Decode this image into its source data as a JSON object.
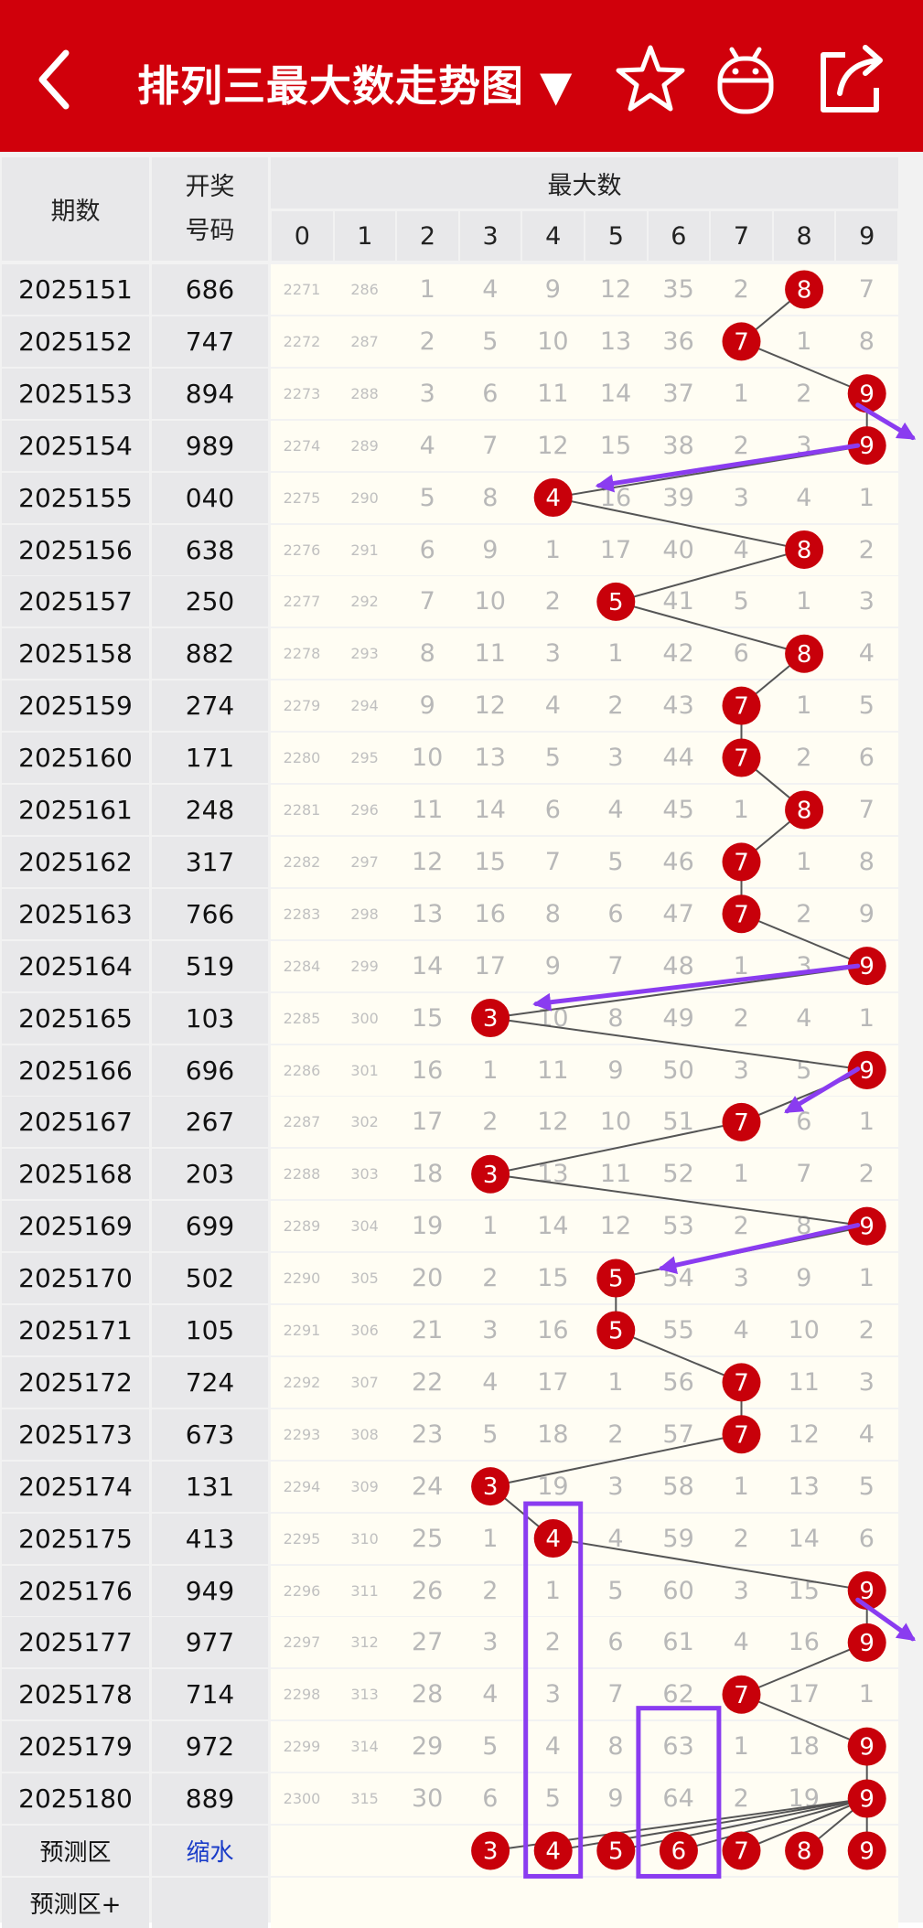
{
  "header": {
    "title": "排列三最大数走势图 ▼",
    "back_icon": "back-arrow-icon",
    "star_icon": "star-icon",
    "robot_icon": "robot-icon",
    "share_icon": "share-icon",
    "color": "#d0000b"
  },
  "table": {
    "col_period": "期数",
    "col_number_line1": "开奖",
    "col_number_line2": "号码",
    "group_header": "最大数",
    "digits": [
      "0",
      "1",
      "2",
      "3",
      "4",
      "5",
      "6",
      "7",
      "8",
      "9"
    ],
    "rows": [
      {
        "period": "2025151",
        "number": "686",
        "max": 8,
        "c": [
          "2271",
          "286",
          "1",
          "4",
          "9",
          "12",
          "35",
          "2",
          "8",
          "7"
        ]
      },
      {
        "period": "2025152",
        "number": "747",
        "max": 7,
        "c": [
          "2272",
          "287",
          "2",
          "5",
          "10",
          "13",
          "36",
          "7",
          "1",
          "8"
        ]
      },
      {
        "period": "2025153",
        "number": "894",
        "max": 9,
        "c": [
          "2273",
          "288",
          "3",
          "6",
          "11",
          "14",
          "37",
          "1",
          "2",
          "9"
        ]
      },
      {
        "period": "2025154",
        "number": "989",
        "max": 9,
        "c": [
          "2274",
          "289",
          "4",
          "7",
          "12",
          "15",
          "38",
          "2",
          "3",
          "9"
        ]
      },
      {
        "period": "2025155",
        "number": "040",
        "max": 4,
        "c": [
          "2275",
          "290",
          "5",
          "8",
          "4",
          "16",
          "39",
          "3",
          "4",
          "1"
        ]
      },
      {
        "period": "2025156",
        "number": "638",
        "max": 8,
        "c": [
          "2276",
          "291",
          "6",
          "9",
          "1",
          "17",
          "40",
          "4",
          "8",
          "2"
        ]
      },
      {
        "period": "2025157",
        "number": "250",
        "max": 5,
        "c": [
          "2277",
          "292",
          "7",
          "10",
          "2",
          "5",
          "41",
          "5",
          "1",
          "3"
        ]
      },
      {
        "period": "2025158",
        "number": "882",
        "max": 8,
        "c": [
          "2278",
          "293",
          "8",
          "11",
          "3",
          "1",
          "42",
          "6",
          "8",
          "4"
        ]
      },
      {
        "period": "2025159",
        "number": "274",
        "max": 7,
        "c": [
          "2279",
          "294",
          "9",
          "12",
          "4",
          "2",
          "43",
          "7",
          "1",
          "5"
        ]
      },
      {
        "period": "2025160",
        "number": "171",
        "max": 7,
        "c": [
          "2280",
          "295",
          "10",
          "13",
          "5",
          "3",
          "44",
          "7",
          "2",
          "6"
        ]
      },
      {
        "period": "2025161",
        "number": "248",
        "max": 8,
        "c": [
          "2281",
          "296",
          "11",
          "14",
          "6",
          "4",
          "45",
          "1",
          "8",
          "7"
        ]
      },
      {
        "period": "2025162",
        "number": "317",
        "max": 7,
        "c": [
          "2282",
          "297",
          "12",
          "15",
          "7",
          "5",
          "46",
          "7",
          "1",
          "8"
        ]
      },
      {
        "period": "2025163",
        "number": "766",
        "max": 7,
        "c": [
          "2283",
          "298",
          "13",
          "16",
          "8",
          "6",
          "47",
          "7",
          "2",
          "9"
        ]
      },
      {
        "period": "2025164",
        "number": "519",
        "max": 9,
        "c": [
          "2284",
          "299",
          "14",
          "17",
          "9",
          "7",
          "48",
          "1",
          "3",
          "9"
        ]
      },
      {
        "period": "2025165",
        "number": "103",
        "max": 3,
        "c": [
          "2285",
          "300",
          "15",
          "3",
          "10",
          "8",
          "49",
          "2",
          "4",
          "1"
        ]
      },
      {
        "period": "2025166",
        "number": "696",
        "max": 9,
        "c": [
          "2286",
          "301",
          "16",
          "1",
          "11",
          "9",
          "50",
          "3",
          "5",
          "9"
        ]
      },
      {
        "period": "2025167",
        "number": "267",
        "max": 7,
        "c": [
          "2287",
          "302",
          "17",
          "2",
          "12",
          "10",
          "51",
          "7",
          "6",
          "1"
        ]
      },
      {
        "period": "2025168",
        "number": "203",
        "max": 3,
        "c": [
          "2288",
          "303",
          "18",
          "3",
          "13",
          "11",
          "52",
          "1",
          "7",
          "2"
        ]
      },
      {
        "period": "2025169",
        "number": "699",
        "max": 9,
        "c": [
          "2289",
          "304",
          "19",
          "1",
          "14",
          "12",
          "53",
          "2",
          "8",
          "9"
        ]
      },
      {
        "period": "2025170",
        "number": "502",
        "max": 5,
        "c": [
          "2290",
          "305",
          "20",
          "2",
          "15",
          "5",
          "54",
          "3",
          "9",
          "1"
        ]
      },
      {
        "period": "2025171",
        "number": "105",
        "max": 5,
        "c": [
          "2291",
          "306",
          "21",
          "3",
          "16",
          "5",
          "55",
          "4",
          "10",
          "2"
        ]
      },
      {
        "period": "2025172",
        "number": "724",
        "max": 7,
        "c": [
          "2292",
          "307",
          "22",
          "4",
          "17",
          "1",
          "56",
          "7",
          "11",
          "3"
        ]
      },
      {
        "period": "2025173",
        "number": "673",
        "max": 7,
        "c": [
          "2293",
          "308",
          "23",
          "5",
          "18",
          "2",
          "57",
          "7",
          "12",
          "4"
        ]
      },
      {
        "period": "2025174",
        "number": "131",
        "max": 3,
        "c": [
          "2294",
          "309",
          "24",
          "3",
          "19",
          "3",
          "58",
          "1",
          "13",
          "5"
        ]
      },
      {
        "period": "2025175",
        "number": "413",
        "max": 4,
        "c": [
          "2295",
          "310",
          "25",
          "1",
          "4",
          "4",
          "59",
          "2",
          "14",
          "6"
        ]
      },
      {
        "period": "2025176",
        "number": "949",
        "max": 9,
        "c": [
          "2296",
          "311",
          "26",
          "2",
          "1",
          "5",
          "60",
          "3",
          "15",
          "9"
        ]
      },
      {
        "period": "2025177",
        "number": "977",
        "max": 9,
        "c": [
          "2297",
          "312",
          "27",
          "3",
          "2",
          "6",
          "61",
          "4",
          "16",
          "9"
        ]
      },
      {
        "period": "2025178",
        "number": "714",
        "max": 7,
        "c": [
          "2298",
          "313",
          "28",
          "4",
          "3",
          "7",
          "62",
          "7",
          "17",
          "1"
        ]
      },
      {
        "period": "2025179",
        "number": "972",
        "max": 9,
        "c": [
          "2299",
          "314",
          "29",
          "5",
          "4",
          "8",
          "63",
          "1",
          "18",
          "9"
        ]
      },
      {
        "period": "2025180",
        "number": "889",
        "max": 9,
        "c": [
          "2300",
          "315",
          "30",
          "6",
          "5",
          "9",
          "64",
          "2",
          "19",
          "9"
        ]
      }
    ],
    "predict_label": "预测区",
    "predict_link": "缩水",
    "predict_balls": [
      "3",
      "4",
      "5",
      "6",
      "7",
      "8",
      "9"
    ],
    "predict_plus_label": "预测区+"
  },
  "colors": {
    "ball": "#c8000a",
    "line": "#555555",
    "annotation": "#8a3cf0",
    "cell_bg": "#fffdf3",
    "label_bg": "#e8e8ea"
  }
}
